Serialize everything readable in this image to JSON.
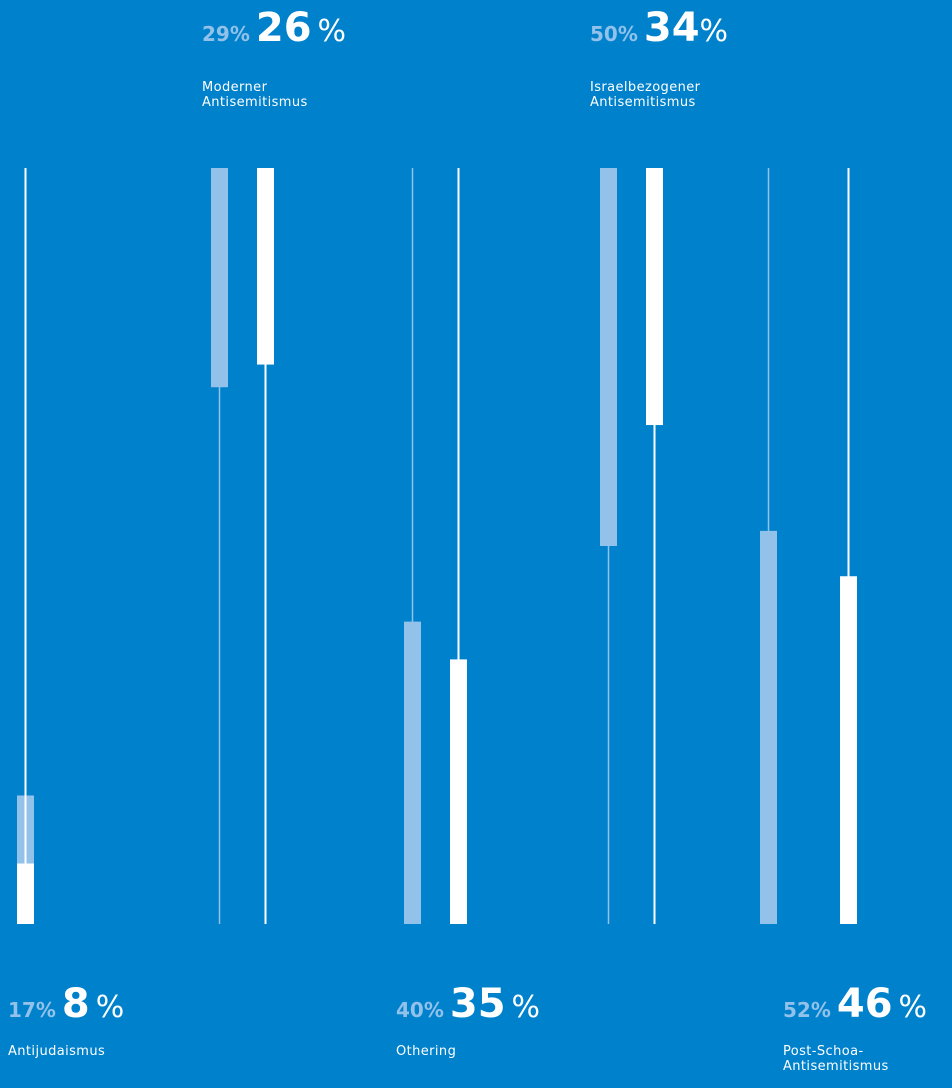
{
  "colors": {
    "background": "#0081cc",
    "previous": "#92c1ea",
    "current": "#ffffff"
  },
  "chart_data": {
    "type": "bar",
    "ylim": [
      0,
      100
    ],
    "series": [
      {
        "values": [
          17,
          29,
          40,
          50,
          52
        ],
        "color": "#92c1ea"
      },
      {
        "values": [
          8,
          26,
          35,
          34,
          46
        ],
        "color": "#ffffff"
      }
    ],
    "categories": [
      {
        "name": "Antijudaismus",
        "previous": "17%",
        "current": "8",
        "percent": "%",
        "lines": [
          "Antijudaismus"
        ]
      },
      {
        "name": "Moderner Antisemitismus",
        "previous": "29%",
        "current": "26",
        "percent": "%",
        "lines": [
          "Moderner",
          "Antisemitismus"
        ]
      },
      {
        "name": "Othering",
        "previous": "40%",
        "current": "35",
        "percent": "%",
        "lines": [
          "Othering"
        ]
      },
      {
        "name": "Israelbezogener Antisemitismus",
        "previous": "50%",
        "current": "34",
        "percent": "%",
        "lines": [
          "Israelbezogener",
          "Antisemitismus"
        ]
      },
      {
        "name": "Post-Schoa-Antisemitismus",
        "previous": "52%",
        "current": "46",
        "percent": "%",
        "lines": [
          "Post-Schoa-",
          "Antisemitismus"
        ]
      }
    ]
  }
}
